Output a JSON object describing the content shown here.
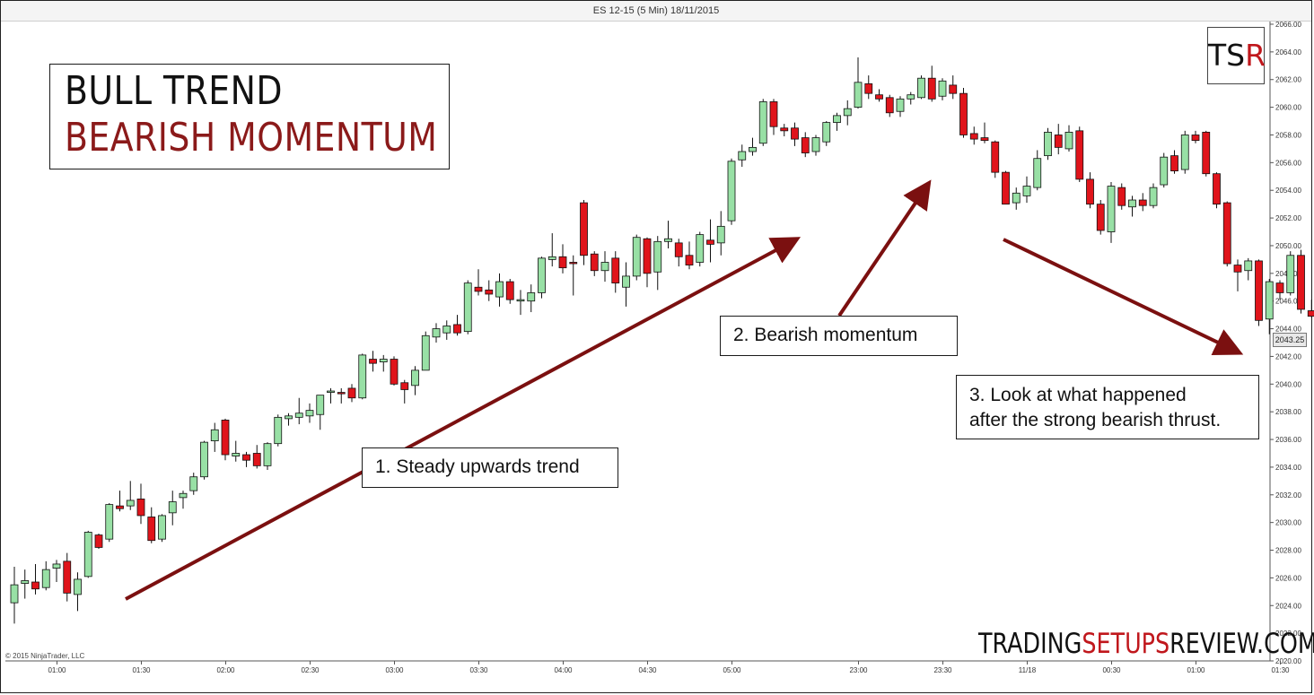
{
  "window": {
    "title": "ES 12-15 (5 Min)  18/11/2015"
  },
  "title": {
    "line1": "BULL TREND",
    "line2": "BEARISH MOMENTUM"
  },
  "annotations": {
    "note1": "1. Steady upwards trend",
    "note2": "2. Bearish momentum",
    "note3_line1": "3. Look at what happened",
    "note3_line2": "after the strong bearish thrust."
  },
  "logo": {
    "left": "TS",
    "right": "R"
  },
  "brand": {
    "part1": "TRADING",
    "part2": "SETUPS",
    "part3": "REVIEW.COM"
  },
  "copyright": "© 2015 NinjaTrader, LLC",
  "colors": {
    "bull": "#98e0a5",
    "bear": "#e0141b",
    "arrow": "#7b1010",
    "accent": "#c0171c"
  },
  "chart_data": {
    "type": "candlestick",
    "title": "ES 12-15 (5 Min)  18/11/2015",
    "ylim": [
      2020,
      2066
    ],
    "y_ticks": [
      2020,
      2022,
      2024,
      2026,
      2028,
      2030,
      2032,
      2034,
      2036,
      2038,
      2040,
      2042,
      2044,
      2046,
      2048,
      2050,
      2052,
      2054,
      2056,
      2058,
      2060,
      2062,
      2064,
      2066
    ],
    "x_tick_labels": [
      "01:00",
      "01:30",
      "02:00",
      "02:30",
      "03:00",
      "03:30",
      "04:00",
      "04:30",
      "05:00",
      "23:00",
      "23:30",
      "11/18",
      "00:30",
      "01:00",
      "01:30",
      "02:00",
      "02:30",
      "03:00",
      "03:30",
      "04:00"
    ],
    "x_tick_index": [
      2,
      10,
      18,
      26,
      34,
      42,
      50,
      58,
      66,
      78,
      86,
      94,
      102,
      110,
      118,
      126,
      134,
      142,
      150,
      158
    ],
    "last_price": "2043.25",
    "candles": [
      {
        "o": 2024.2,
        "h": 2026.8,
        "l": 2022.7,
        "c": 2025.5
      },
      {
        "o": 2025.6,
        "h": 2026.6,
        "l": 2024.5,
        "c": 2025.8
      },
      {
        "o": 2025.7,
        "h": 2027.0,
        "l": 2024.8,
        "c": 2025.2
      },
      {
        "o": 2025.3,
        "h": 2027.2,
        "l": 2025.1,
        "c": 2026.6
      },
      {
        "o": 2026.7,
        "h": 2027.3,
        "l": 2025.7,
        "c": 2027.0
      },
      {
        "o": 2027.2,
        "h": 2027.8,
        "l": 2024.3,
        "c": 2024.9
      },
      {
        "o": 2024.8,
        "h": 2026.4,
        "l": 2023.6,
        "c": 2025.9
      },
      {
        "o": 2026.1,
        "h": 2029.4,
        "l": 2026.0,
        "c": 2029.3
      },
      {
        "o": 2029.1,
        "h": 2029.2,
        "l": 2028.1,
        "c": 2028.2
      },
      {
        "o": 2028.8,
        "h": 2031.4,
        "l": 2028.6,
        "c": 2031.3
      },
      {
        "o": 2031.2,
        "h": 2032.3,
        "l": 2030.8,
        "c": 2031.0
      },
      {
        "o": 2031.2,
        "h": 2033.0,
        "l": 2030.9,
        "c": 2031.6
      },
      {
        "o": 2031.7,
        "h": 2032.8,
        "l": 2029.9,
        "c": 2030.5
      },
      {
        "o": 2030.4,
        "h": 2031.1,
        "l": 2028.5,
        "c": 2028.7
      },
      {
        "o": 2028.8,
        "h": 2030.6,
        "l": 2028.6,
        "c": 2030.5
      },
      {
        "o": 2030.7,
        "h": 2032.3,
        "l": 2029.8,
        "c": 2031.5
      },
      {
        "o": 2031.8,
        "h": 2032.3,
        "l": 2031.0,
        "c": 2032.1
      },
      {
        "o": 2032.3,
        "h": 2033.6,
        "l": 2032.0,
        "c": 2033.3
      },
      {
        "o": 2033.3,
        "h": 2035.9,
        "l": 2033.1,
        "c": 2035.8
      },
      {
        "o": 2035.9,
        "h": 2037.2,
        "l": 2035.1,
        "c": 2036.7
      },
      {
        "o": 2037.4,
        "h": 2037.5,
        "l": 2034.5,
        "c": 2034.9
      },
      {
        "o": 2034.8,
        "h": 2035.9,
        "l": 2034.4,
        "c": 2035.0
      },
      {
        "o": 2034.9,
        "h": 2035.1,
        "l": 2034.0,
        "c": 2034.5
      },
      {
        "o": 2035.0,
        "h": 2035.6,
        "l": 2033.9,
        "c": 2034.1
      },
      {
        "o": 2034.1,
        "h": 2035.8,
        "l": 2033.8,
        "c": 2035.7
      },
      {
        "o": 2035.7,
        "h": 2037.8,
        "l": 2035.5,
        "c": 2037.6
      },
      {
        "o": 2037.5,
        "h": 2037.9,
        "l": 2037.0,
        "c": 2037.7
      },
      {
        "o": 2037.6,
        "h": 2039.0,
        "l": 2037.1,
        "c": 2037.9
      },
      {
        "o": 2037.7,
        "h": 2038.6,
        "l": 2037.2,
        "c": 2038.1
      },
      {
        "o": 2037.8,
        "h": 2038.9,
        "l": 2036.7,
        "c": 2039.2
      },
      {
        "o": 2039.4,
        "h": 2039.7,
        "l": 2038.6,
        "c": 2039.5
      },
      {
        "o": 2039.4,
        "h": 2039.7,
        "l": 2038.6,
        "c": 2039.3
      },
      {
        "o": 2039.7,
        "h": 2040.0,
        "l": 2038.7,
        "c": 2039.0
      },
      {
        "o": 2039.0,
        "h": 2042.2,
        "l": 2038.9,
        "c": 2042.1
      },
      {
        "o": 2041.8,
        "h": 2042.4,
        "l": 2040.9,
        "c": 2041.5
      },
      {
        "o": 2041.6,
        "h": 2042.1,
        "l": 2040.9,
        "c": 2041.8
      },
      {
        "o": 2041.8,
        "h": 2042.0,
        "l": 2039.9,
        "c": 2040.0
      },
      {
        "o": 2040.1,
        "h": 2040.3,
        "l": 2038.6,
        "c": 2039.6
      },
      {
        "o": 2039.9,
        "h": 2041.3,
        "l": 2039.2,
        "c": 2041.0
      },
      {
        "o": 2041.0,
        "h": 2043.8,
        "l": 2041.0,
        "c": 2043.5
      },
      {
        "o": 2043.4,
        "h": 2044.4,
        "l": 2043.0,
        "c": 2044.0
      },
      {
        "o": 2043.7,
        "h": 2044.6,
        "l": 2043.2,
        "c": 2044.2
      },
      {
        "o": 2044.3,
        "h": 2045.0,
        "l": 2043.5,
        "c": 2043.7
      },
      {
        "o": 2043.8,
        "h": 2047.5,
        "l": 2043.6,
        "c": 2047.3
      },
      {
        "o": 2047.0,
        "h": 2048.3,
        "l": 2046.4,
        "c": 2046.7
      },
      {
        "o": 2046.8,
        "h": 2047.5,
        "l": 2046.0,
        "c": 2046.5
      },
      {
        "o": 2046.3,
        "h": 2048.0,
        "l": 2045.6,
        "c": 2047.4
      },
      {
        "o": 2047.4,
        "h": 2047.6,
        "l": 2045.8,
        "c": 2046.1
      },
      {
        "o": 2046.0,
        "h": 2046.8,
        "l": 2045.0,
        "c": 2046.1
      },
      {
        "o": 2046.0,
        "h": 2047.2,
        "l": 2045.2,
        "c": 2046.6
      },
      {
        "o": 2046.6,
        "h": 2049.2,
        "l": 2046.2,
        "c": 2049.1
      },
      {
        "o": 2049.0,
        "h": 2050.9,
        "l": 2048.5,
        "c": 2049.2
      },
      {
        "o": 2049.2,
        "h": 2050.1,
        "l": 2048.0,
        "c": 2048.4
      },
      {
        "o": 2048.8,
        "h": 2049.3,
        "l": 2046.4,
        "c": 2048.7
      },
      {
        "o": 2053.1,
        "h": 2053.3,
        "l": 2048.6,
        "c": 2049.3
      },
      {
        "o": 2049.4,
        "h": 2049.6,
        "l": 2047.8,
        "c": 2048.2
      },
      {
        "o": 2048.2,
        "h": 2049.6,
        "l": 2047.4,
        "c": 2048.8
      },
      {
        "o": 2049.1,
        "h": 2049.6,
        "l": 2046.6,
        "c": 2047.3
      },
      {
        "o": 2047.0,
        "h": 2048.8,
        "l": 2045.6,
        "c": 2047.8
      },
      {
        "o": 2047.8,
        "h": 2050.8,
        "l": 2047.5,
        "c": 2050.6
      },
      {
        "o": 2050.5,
        "h": 2050.6,
        "l": 2047.0,
        "c": 2048.0
      },
      {
        "o": 2048.1,
        "h": 2050.7,
        "l": 2046.8,
        "c": 2050.3
      },
      {
        "o": 2050.3,
        "h": 2051.8,
        "l": 2049.8,
        "c": 2050.5
      },
      {
        "o": 2050.2,
        "h": 2050.5,
        "l": 2048.5,
        "c": 2049.2
      },
      {
        "o": 2049.3,
        "h": 2050.3,
        "l": 2048.3,
        "c": 2048.6
      },
      {
        "o": 2048.8,
        "h": 2051.0,
        "l": 2048.5,
        "c": 2050.8
      },
      {
        "o": 2050.4,
        "h": 2051.9,
        "l": 2048.8,
        "c": 2050.1
      },
      {
        "o": 2050.2,
        "h": 2052.5,
        "l": 2049.3,
        "c": 2051.4
      },
      {
        "o": 2051.8,
        "h": 2056.3,
        "l": 2051.5,
        "c": 2056.1
      },
      {
        "o": 2056.2,
        "h": 2057.3,
        "l": 2055.7,
        "c": 2056.8
      },
      {
        "o": 2056.8,
        "h": 2057.8,
        "l": 2056.5,
        "c": 2057.1
      },
      {
        "o": 2057.4,
        "h": 2060.6,
        "l": 2057.2,
        "c": 2060.4
      },
      {
        "o": 2060.4,
        "h": 2060.6,
        "l": 2058.0,
        "c": 2058.6
      },
      {
        "o": 2058.5,
        "h": 2058.8,
        "l": 2057.9,
        "c": 2058.3
      },
      {
        "o": 2058.5,
        "h": 2058.9,
        "l": 2057.2,
        "c": 2057.7
      },
      {
        "o": 2057.8,
        "h": 2058.2,
        "l": 2056.4,
        "c": 2056.7
      },
      {
        "o": 2056.8,
        "h": 2058.0,
        "l": 2056.5,
        "c": 2057.8
      },
      {
        "o": 2057.5,
        "h": 2059.0,
        "l": 2057.2,
        "c": 2058.9
      },
      {
        "o": 2058.9,
        "h": 2059.6,
        "l": 2058.3,
        "c": 2059.4
      },
      {
        "o": 2059.4,
        "h": 2060.5,
        "l": 2058.7,
        "c": 2059.9
      },
      {
        "o": 2060.0,
        "h": 2063.6,
        "l": 2059.9,
        "c": 2061.8
      },
      {
        "o": 2061.7,
        "h": 2062.3,
        "l": 2060.6,
        "c": 2061.0
      },
      {
        "o": 2060.9,
        "h": 2061.3,
        "l": 2060.4,
        "c": 2060.6
      },
      {
        "o": 2060.7,
        "h": 2060.9,
        "l": 2059.3,
        "c": 2059.6
      },
      {
        "o": 2059.7,
        "h": 2060.8,
        "l": 2059.3,
        "c": 2060.6
      },
      {
        "o": 2060.6,
        "h": 2061.1,
        "l": 2060.2,
        "c": 2060.9
      },
      {
        "o": 2060.7,
        "h": 2062.3,
        "l": 2060.6,
        "c": 2062.1
      },
      {
        "o": 2062.1,
        "h": 2063.0,
        "l": 2060.4,
        "c": 2060.6
      },
      {
        "o": 2060.8,
        "h": 2062.1,
        "l": 2060.5,
        "c": 2061.9
      },
      {
        "o": 2061.6,
        "h": 2062.3,
        "l": 2060.6,
        "c": 2061.0
      },
      {
        "o": 2061.0,
        "h": 2061.4,
        "l": 2057.8,
        "c": 2058.0
      },
      {
        "o": 2058.1,
        "h": 2058.6,
        "l": 2057.3,
        "c": 2057.7
      },
      {
        "o": 2057.8,
        "h": 2058.9,
        "l": 2057.4,
        "c": 2057.6
      },
      {
        "o": 2057.5,
        "h": 2057.6,
        "l": 2054.9,
        "c": 2055.3
      },
      {
        "o": 2055.3,
        "h": 2055.4,
        "l": 2053.0,
        "c": 2053.0
      },
      {
        "o": 2053.1,
        "h": 2054.2,
        "l": 2052.6,
        "c": 2053.8
      },
      {
        "o": 2053.6,
        "h": 2055.0,
        "l": 2053.1,
        "c": 2054.3
      },
      {
        "o": 2054.2,
        "h": 2056.9,
        "l": 2054.0,
        "c": 2056.3
      },
      {
        "o": 2056.5,
        "h": 2058.5,
        "l": 2056.2,
        "c": 2058.2
      },
      {
        "o": 2058.0,
        "h": 2058.8,
        "l": 2056.6,
        "c": 2057.1
      },
      {
        "o": 2057.0,
        "h": 2058.7,
        "l": 2056.8,
        "c": 2058.2
      },
      {
        "o": 2058.3,
        "h": 2058.6,
        "l": 2054.6,
        "c": 2054.8
      },
      {
        "o": 2054.8,
        "h": 2055.3,
        "l": 2052.7,
        "c": 2053.0
      },
      {
        "o": 2053.0,
        "h": 2053.3,
        "l": 2050.8,
        "c": 2051.1
      },
      {
        "o": 2051.0,
        "h": 2054.6,
        "l": 2050.2,
        "c": 2054.3
      },
      {
        "o": 2054.2,
        "h": 2054.5,
        "l": 2052.6,
        "c": 2052.9
      },
      {
        "o": 2052.8,
        "h": 2053.6,
        "l": 2052.1,
        "c": 2053.3
      },
      {
        "o": 2053.3,
        "h": 2053.8,
        "l": 2052.5,
        "c": 2052.9
      },
      {
        "o": 2052.9,
        "h": 2054.5,
        "l": 2052.7,
        "c": 2054.2
      },
      {
        "o": 2054.4,
        "h": 2056.7,
        "l": 2054.2,
        "c": 2056.4
      },
      {
        "o": 2056.5,
        "h": 2056.9,
        "l": 2055.2,
        "c": 2055.4
      },
      {
        "o": 2055.5,
        "h": 2058.3,
        "l": 2055.2,
        "c": 2058.0
      },
      {
        "o": 2058.0,
        "h": 2058.3,
        "l": 2057.4,
        "c": 2057.6
      },
      {
        "o": 2058.2,
        "h": 2058.3,
        "l": 2055.0,
        "c": 2055.2
      },
      {
        "o": 2055.2,
        "h": 2055.3,
        "l": 2052.7,
        "c": 2053.0
      },
      {
        "o": 2053.1,
        "h": 2053.2,
        "l": 2048.5,
        "c": 2048.7
      },
      {
        "o": 2048.6,
        "h": 2049.0,
        "l": 2046.7,
        "c": 2048.1
      },
      {
        "o": 2048.2,
        "h": 2049.1,
        "l": 2047.5,
        "c": 2048.9
      },
      {
        "o": 2048.9,
        "h": 2049.0,
        "l": 2044.2,
        "c": 2044.6
      },
      {
        "o": 2044.7,
        "h": 2047.6,
        "l": 2043.6,
        "c": 2047.4
      },
      {
        "o": 2047.3,
        "h": 2047.5,
        "l": 2046.1,
        "c": 2046.6
      },
      {
        "o": 2046.6,
        "h": 2049.6,
        "l": 2046.4,
        "c": 2049.3
      },
      {
        "o": 2049.3,
        "h": 2049.7,
        "l": 2045.1,
        "c": 2045.4
      },
      {
        "o": 2045.3,
        "h": 2046.1,
        "l": 2044.8,
        "c": 2044.9
      },
      {
        "o": 2045.0,
        "h": 2046.3,
        "l": 2041.6,
        "c": 2043.3
      }
    ]
  }
}
